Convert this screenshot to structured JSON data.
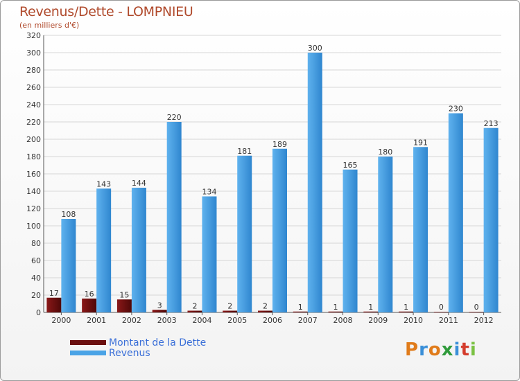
{
  "header": {
    "title": "Revenus/Dette - LOMPNIEU",
    "subtitle": "(en milliers d'€)"
  },
  "legend": {
    "items": [
      {
        "label": "Montant de la Dette",
        "color": "#6b0f0f"
      },
      {
        "label": "Revenus",
        "color": "#4aa3e6"
      }
    ]
  },
  "logo": {
    "letters": [
      "P",
      "r",
      "o",
      "x",
      "i",
      "t",
      "i"
    ],
    "colors": [
      "#e07b1a",
      "#3a8fd8",
      "#e07b1a",
      "#2e9a3a",
      "#3a8fd8",
      "#d43c2c",
      "#7ac142"
    ]
  },
  "chart_data": {
    "type": "bar",
    "categories": [
      "2000",
      "2001",
      "2002",
      "2003",
      "2004",
      "2005",
      "2006",
      "2007",
      "2008",
      "2009",
      "2010",
      "2011",
      "2012"
    ],
    "series": [
      {
        "name": "Montant de la Dette",
        "color": "#6b0f0f",
        "values": [
          17,
          16,
          15,
          3,
          2,
          2,
          2,
          1,
          1,
          1,
          1,
          0,
          0
        ]
      },
      {
        "name": "Revenus",
        "color": "#4aa3e6",
        "values": [
          108,
          143,
          144,
          220,
          134,
          181,
          189,
          300,
          165,
          180,
          191,
          230,
          213
        ]
      }
    ],
    "yticks": [
      0,
      20,
      40,
      60,
      80,
      100,
      120,
      140,
      160,
      180,
      200,
      220,
      240,
      260,
      280,
      300,
      320
    ],
    "ylim": [
      0,
      320
    ],
    "grid": true
  }
}
